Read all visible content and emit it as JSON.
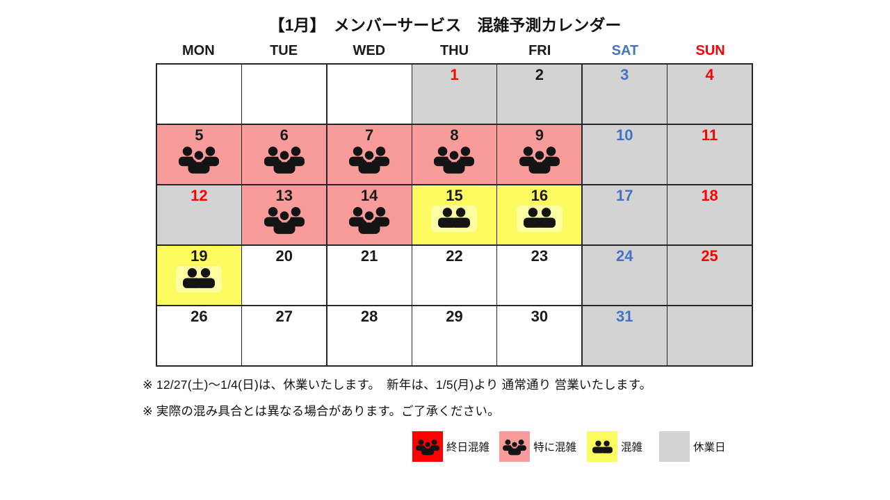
{
  "title": "【1月】　メンバーサービス　混雑予測カレンダー",
  "weekday_headers": [
    {
      "label": "MON",
      "color": "#1a1a1a"
    },
    {
      "label": "TUE",
      "color": "#1a1a1a"
    },
    {
      "label": "WED",
      "color": "#1a1a1a"
    },
    {
      "label": "THU",
      "color": "#1a1a1a"
    },
    {
      "label": "FRI",
      "color": "#1a1a1a"
    },
    {
      "label": "SAT",
      "color": "#4472c4"
    },
    {
      "label": "SUN",
      "color": "#ff0000"
    }
  ],
  "calendar": {
    "month": "1月",
    "cells": [
      {
        "day": "",
        "bg": "white",
        "num_color": "",
        "icon": ""
      },
      {
        "day": "",
        "bg": "white",
        "num_color": "",
        "icon": ""
      },
      {
        "day": "",
        "bg": "white",
        "num_color": "",
        "icon": ""
      },
      {
        "day": "1",
        "bg": "gray",
        "num_color": "red",
        "icon": ""
      },
      {
        "day": "2",
        "bg": "gray",
        "num_color": "black",
        "icon": ""
      },
      {
        "day": "3",
        "bg": "gray",
        "num_color": "blue",
        "icon": ""
      },
      {
        "day": "4",
        "bg": "gray",
        "num_color": "red",
        "icon": ""
      },
      {
        "day": "5",
        "bg": "pink",
        "num_color": "black",
        "icon": "people-3"
      },
      {
        "day": "6",
        "bg": "pink",
        "num_color": "black",
        "icon": "people-3"
      },
      {
        "day": "7",
        "bg": "pink",
        "num_color": "black",
        "icon": "people-3"
      },
      {
        "day": "8",
        "bg": "pink",
        "num_color": "black",
        "icon": "people-3"
      },
      {
        "day": "9",
        "bg": "pink",
        "num_color": "black",
        "icon": "people-3"
      },
      {
        "day": "10",
        "bg": "gray",
        "num_color": "blue",
        "icon": ""
      },
      {
        "day": "11",
        "bg": "gray",
        "num_color": "red",
        "icon": ""
      },
      {
        "day": "12",
        "bg": "gray",
        "num_color": "red",
        "icon": ""
      },
      {
        "day": "13",
        "bg": "pink",
        "num_color": "black",
        "icon": "people-3"
      },
      {
        "day": "14",
        "bg": "pink",
        "num_color": "black",
        "icon": "people-3"
      },
      {
        "day": "15",
        "bg": "yellow",
        "num_color": "black",
        "icon": "people-2"
      },
      {
        "day": "16",
        "bg": "yellow",
        "num_color": "black",
        "icon": "people-2"
      },
      {
        "day": "17",
        "bg": "gray",
        "num_color": "blue",
        "icon": ""
      },
      {
        "day": "18",
        "bg": "gray",
        "num_color": "red",
        "icon": ""
      },
      {
        "day": "19",
        "bg": "yellow",
        "num_color": "black",
        "icon": "people-2"
      },
      {
        "day": "20",
        "bg": "white",
        "num_color": "black",
        "icon": ""
      },
      {
        "day": "21",
        "bg": "white",
        "num_color": "black",
        "icon": ""
      },
      {
        "day": "22",
        "bg": "white",
        "num_color": "black",
        "icon": ""
      },
      {
        "day": "23",
        "bg": "white",
        "num_color": "black",
        "icon": ""
      },
      {
        "day": "24",
        "bg": "gray",
        "num_color": "blue",
        "icon": ""
      },
      {
        "day": "25",
        "bg": "gray",
        "num_color": "red",
        "icon": ""
      },
      {
        "day": "26",
        "bg": "white",
        "num_color": "black",
        "icon": ""
      },
      {
        "day": "27",
        "bg": "white",
        "num_color": "black",
        "icon": ""
      },
      {
        "day": "28",
        "bg": "white",
        "num_color": "black",
        "icon": ""
      },
      {
        "day": "29",
        "bg": "white",
        "num_color": "black",
        "icon": ""
      },
      {
        "day": "30",
        "bg": "white",
        "num_color": "black",
        "icon": ""
      },
      {
        "day": "31",
        "bg": "gray",
        "num_color": "blue",
        "icon": ""
      },
      {
        "day": "",
        "bg": "gray",
        "num_color": "",
        "icon": ""
      }
    ]
  },
  "notes": [
    "※ 12/27(土)～1/4(日)は、休業いたします。　新年は、1/5(月)より 通常通り 営業いたします。",
    "※ 実際の混み具合とは異なる場合があります。ご了承ください。"
  ],
  "legend": [
    {
      "label": "終日混雑",
      "box_color": "#ff0000",
      "icon": "people-3"
    },
    {
      "label": "特に混雑",
      "box_color": "#f89b9b",
      "icon": "people-3"
    },
    {
      "label": "混雑",
      "box_color": "#fcfc60",
      "icon": "people-2"
    },
    {
      "label": "休業日",
      "box_color": "#d3d3d3",
      "icon": ""
    }
  ],
  "colors": {
    "crowded_allday": "#ff0000",
    "crowded_especially": "#f89b9b",
    "crowded": "#fcfc60",
    "closed": "#d3d3d3",
    "white_cell": "#ffffff",
    "saturday_text": "#4472c4",
    "sunday_text": "#ff0000",
    "weekday_text": "#1a1a1a",
    "grid_line": "#262626",
    "icon_black": "#141414"
  }
}
